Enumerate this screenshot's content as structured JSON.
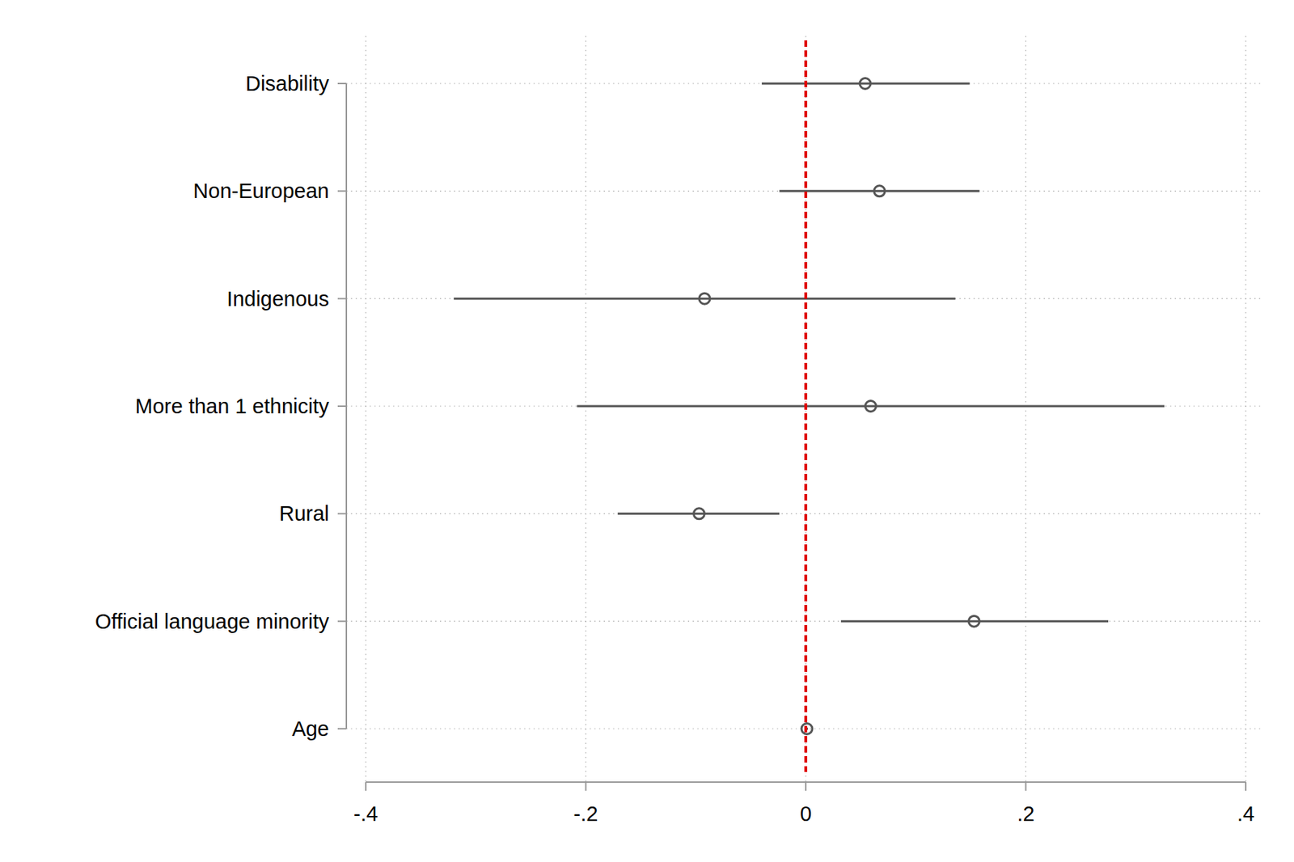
{
  "chart_data": {
    "type": "dot",
    "orientation": "horizontal",
    "categories": [
      "Disability",
      "Non-European",
      "Indigenous",
      "More than 1 ethnicity",
      "Rural",
      "Official language minority",
      "Age"
    ],
    "values": [
      0.054,
      0.067,
      -0.092,
      0.059,
      -0.097,
      0.153,
      0.001
    ],
    "ci_lower": [
      -0.04,
      -0.024,
      -0.32,
      -0.208,
      -0.171,
      0.032,
      0.0
    ],
    "ci_upper": [
      0.149,
      0.158,
      0.136,
      0.326,
      -0.024,
      0.275,
      0.002
    ],
    "color": "#555555",
    "marker": "hollow-circle",
    "reference_line": 0,
    "xlim": [
      -0.4,
      0.4
    ],
    "xticks": [
      {
        "value": -0.4,
        "label": "-.4"
      },
      {
        "value": -0.2,
        "label": "-.2"
      },
      0,
      {
        "value": 0.2,
        "label": ".2"
      },
      {
        "value": 0.4,
        "label": ".4"
      }
    ],
    "grid": true
  }
}
